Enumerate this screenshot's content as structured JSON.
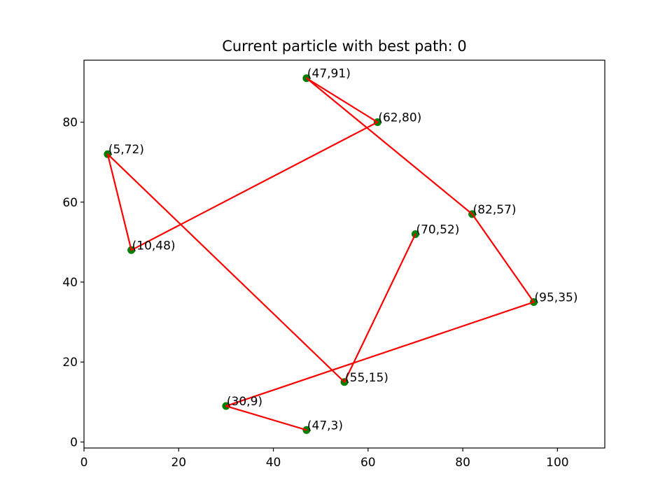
{
  "chart_data": {
    "type": "scatter",
    "title": "Current particle with best path: 0",
    "xlabel": "",
    "ylabel": "",
    "xlim": [
      0,
      110
    ],
    "ylim": [
      -1.5,
      95.5
    ],
    "x_ticks": [
      0,
      20,
      40,
      60,
      80,
      100
    ],
    "y_ticks": [
      0,
      20,
      40,
      60,
      80
    ],
    "grid": false,
    "colors": {
      "points": "#008000",
      "path": "#ff0000",
      "axes": "#000000"
    },
    "points": [
      {
        "x": 47,
        "y": 91,
        "label": "(47,91)"
      },
      {
        "x": 62,
        "y": 80,
        "label": "(62,80)"
      },
      {
        "x": 5,
        "y": 72,
        "label": "(5,72)"
      },
      {
        "x": 82,
        "y": 57,
        "label": "(82,57)"
      },
      {
        "x": 70,
        "y": 52,
        "label": "(70,52)"
      },
      {
        "x": 10,
        "y": 48,
        "label": "(10,48)"
      },
      {
        "x": 95,
        "y": 35,
        "label": "(95,35)"
      },
      {
        "x": 55,
        "y": 15,
        "label": "(55,15)"
      },
      {
        "x": 30,
        "y": 9,
        "label": "(30,9)"
      },
      {
        "x": 47,
        "y": 3,
        "label": "(47,3)"
      }
    ],
    "path": [
      {
        "x": 70,
        "y": 52
      },
      {
        "x": 55,
        "y": 15
      },
      {
        "x": 5,
        "y": 72
      },
      {
        "x": 10,
        "y": 48
      },
      {
        "x": 62,
        "y": 80
      },
      {
        "x": 47,
        "y": 91
      },
      {
        "x": 82,
        "y": 57
      },
      {
        "x": 95,
        "y": 35
      },
      {
        "x": 30,
        "y": 9
      },
      {
        "x": 47,
        "y": 3
      }
    ]
  }
}
